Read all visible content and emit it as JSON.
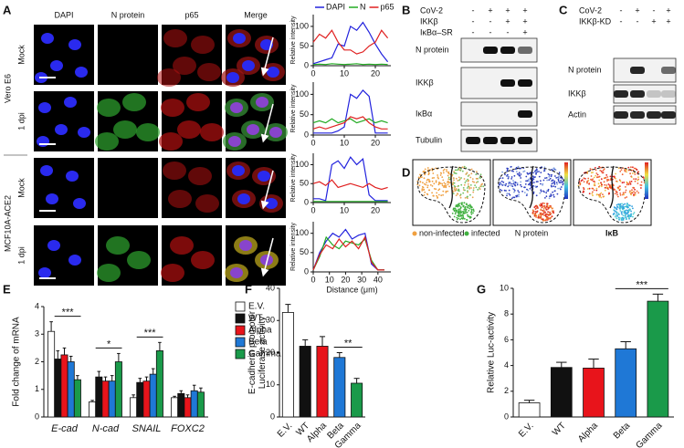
{
  "panel_labels": [
    "A",
    "B",
    "C",
    "D",
    "E",
    "F",
    "G"
  ],
  "panel_a": {
    "columns": [
      "DAPI",
      "N protein",
      "p65",
      "Merge"
    ],
    "cell_lines": [
      "Vero E6",
      "MCF10A-ACE2"
    ],
    "conditions": [
      "Mock",
      "1 dpi",
      "Mock",
      "1 dpi"
    ]
  },
  "blot_b": {
    "conditions": [
      {
        "label": "CoV-2",
        "signs": [
          "-",
          "+",
          "+",
          "+"
        ]
      },
      {
        "label": "IKKβ",
        "signs": [
          "-",
          "-",
          "+",
          "+"
        ]
      },
      {
        "label": "IκBα–SR",
        "signs": [
          "-",
          "-",
          "-",
          "+"
        ]
      }
    ],
    "bands": [
      "N protein",
      "IKKβ",
      "IκBα",
      "Tubulin"
    ]
  },
  "blot_c": {
    "conditions": [
      {
        "label": "CoV-2",
        "signs": [
          "-",
          "+",
          "-",
          "+"
        ]
      },
      {
        "label": "IKKβ-KD",
        "signs": [
          "-",
          "-",
          "+",
          "+"
        ]
      }
    ],
    "bands": [
      "N protein",
      "IKKβ",
      "Actin"
    ]
  },
  "tsne": {
    "legend": [
      "non-infected",
      "infected"
    ],
    "panels": [
      "N protein",
      "IκB"
    ]
  },
  "chart_data": [
    {
      "type": "line",
      "ylabel": "Relative intensity",
      "x": [
        0,
        2,
        4,
        6,
        8,
        10,
        12,
        14,
        16,
        18,
        20,
        22,
        24
      ],
      "series": [
        {
          "name": "DAPI",
          "color": "#2222dd",
          "values": [
            5,
            10,
            15,
            20,
            55,
            50,
            100,
            90,
            110,
            85,
            55,
            30,
            10
          ]
        },
        {
          "name": "N",
          "color": "#22aa22",
          "values": [
            3,
            4,
            3,
            5,
            4,
            3,
            4,
            5,
            3,
            4,
            3,
            4,
            3
          ]
        },
        {
          "name": "p65",
          "color": "#e02020",
          "values": [
            60,
            80,
            70,
            90,
            60,
            40,
            40,
            30,
            35,
            50,
            60,
            90,
            70
          ]
        }
      ],
      "xlim": [
        0,
        25
      ],
      "ylim": [
        0,
        130
      ],
      "xticks": [
        0,
        10,
        20
      ],
      "yticks": [
        0,
        50,
        100
      ]
    },
    {
      "type": "line",
      "ylabel": "Relative intensity",
      "x": [
        0,
        2,
        4,
        6,
        8,
        10,
        12,
        14,
        16,
        18,
        20,
        22,
        24
      ],
      "series": [
        {
          "color": "#2222dd",
          "values": [
            5,
            5,
            5,
            5,
            10,
            20,
            100,
            90,
            110,
            95,
            5,
            5,
            5
          ]
        },
        {
          "color": "#22aa22",
          "values": [
            30,
            35,
            30,
            40,
            30,
            35,
            40,
            30,
            35,
            40,
            30,
            35,
            30
          ]
        },
        {
          "color": "#e02020",
          "values": [
            15,
            20,
            15,
            20,
            25,
            30,
            45,
            40,
            45,
            30,
            20,
            15,
            15
          ]
        }
      ],
      "xlim": [
        0,
        25
      ],
      "ylim": [
        0,
        130
      ],
      "xticks": [
        0,
        10,
        20
      ],
      "yticks": [
        0,
        50,
        100
      ]
    },
    {
      "type": "line",
      "ylabel": "Relative intensity",
      "x": [
        0,
        2,
        4,
        6,
        8,
        10,
        12,
        14,
        16,
        18,
        20,
        22,
        24
      ],
      "series": [
        {
          "color": "#2222dd",
          "values": [
            10,
            10,
            5,
            100,
            110,
            90,
            120,
            100,
            115,
            20,
            5,
            5,
            5
          ]
        },
        {
          "color": "#22aa22",
          "values": [
            3,
            3,
            3,
            3,
            3,
            3,
            3,
            3,
            3,
            3,
            3,
            3,
            3
          ]
        },
        {
          "color": "#e02020",
          "values": [
            50,
            55,
            45,
            60,
            40,
            45,
            50,
            45,
            40,
            50,
            40,
            35,
            40
          ]
        }
      ],
      "xlim": [
        0,
        25
      ],
      "ylim": [
        0,
        130
      ],
      "xticks": [
        0,
        10,
        20
      ],
      "yticks": [
        0,
        50,
        100
      ]
    },
    {
      "type": "line",
      "ylabel": "Relative intensity",
      "xlabel": "Distance (μm)",
      "x": [
        0,
        4,
        8,
        12,
        16,
        20,
        24,
        28,
        32,
        36,
        40,
        44
      ],
      "series": [
        {
          "color": "#2222dd",
          "values": [
            5,
            50,
            80,
            100,
            90,
            110,
            85,
            95,
            100,
            20,
            5,
            5
          ]
        },
        {
          "color": "#22aa22",
          "values": [
            5,
            40,
            90,
            70,
            60,
            80,
            75,
            70,
            85,
            30,
            5,
            5
          ]
        },
        {
          "color": "#e02020",
          "values": [
            5,
            45,
            70,
            60,
            85,
            65,
            80,
            60,
            90,
            25,
            5,
            5
          ]
        }
      ],
      "xlim": [
        0,
        48
      ],
      "ylim": [
        0,
        130
      ],
      "xticks": [
        0,
        10,
        20,
        30,
        40
      ],
      "yticks": [
        0,
        50,
        100
      ]
    },
    {
      "type": "grouped_bar",
      "ylabel": "Fold change of mRNA",
      "categories": [
        "E-cad",
        "N-cad",
        "SNAIL",
        "FOXC2"
      ],
      "series": [
        {
          "name": "E.V.",
          "color": "#ffffff",
          "values": [
            3.1,
            0.55,
            0.7,
            0.7
          ],
          "errors": [
            0.35,
            0.05,
            0.1,
            0.05
          ]
        },
        {
          "name": "WT",
          "color": "#111111",
          "values": [
            2.1,
            1.45,
            1.25,
            0.85
          ],
          "errors": [
            0.3,
            0.2,
            0.15,
            0.1
          ]
        },
        {
          "name": "Alpha",
          "color": "#e8141b",
          "values": [
            2.25,
            1.3,
            1.3,
            0.7
          ],
          "errors": [
            0.25,
            0.15,
            0.15,
            0.1
          ]
        },
        {
          "name": "Beta",
          "color": "#1f78d6",
          "values": [
            2.0,
            1.3,
            1.55,
            0.95
          ],
          "errors": [
            0.2,
            0.2,
            0.2,
            0.2
          ]
        },
        {
          "name": "Gamma",
          "color": "#1a9a4a",
          "values": [
            1.35,
            2.0,
            2.4,
            0.9
          ],
          "errors": [
            0.15,
            0.3,
            0.3,
            0.15
          ]
        }
      ],
      "annotations": [
        "***",
        "*",
        "***"
      ],
      "ylim": [
        0,
        4
      ],
      "yticks": [
        0,
        1,
        2,
        3,
        4
      ]
    },
    {
      "type": "bar",
      "ylabel": [
        "E-cadherin promoter",
        "Luciferase activity"
      ],
      "categories": [
        "E.V.",
        "WT",
        "Alpha",
        "Beta",
        "Gamma"
      ],
      "values": [
        32.5,
        22,
        22,
        18.5,
        10.5
      ],
      "errors": [
        2.5,
        2,
        3,
        1.5,
        1.5
      ],
      "colors": [
        "#ffffff",
        "#111111",
        "#e8141b",
        "#1f78d6",
        "#1a9a4a"
      ],
      "annotation": "**",
      "ylim": [
        0,
        40
      ],
      "yticks": [
        0,
        10,
        20,
        30,
        40
      ]
    },
    {
      "type": "bar",
      "ylabel": [
        "Relative Luc-activity"
      ],
      "categories": [
        "E.V.",
        "WT",
        "Alpha",
        "Beta",
        "Gamma"
      ],
      "values": [
        1.1,
        3.85,
        3.8,
        5.3,
        9.0
      ],
      "errors": [
        0.2,
        0.4,
        0.7,
        0.55,
        0.55
      ],
      "colors": [
        "#ffffff",
        "#111111",
        "#e8141b",
        "#1f78d6",
        "#1a9a4a"
      ],
      "annotation": "***",
      "ylim": [
        0,
        10
      ],
      "yticks": [
        0,
        2,
        4,
        6,
        8,
        10
      ]
    }
  ]
}
